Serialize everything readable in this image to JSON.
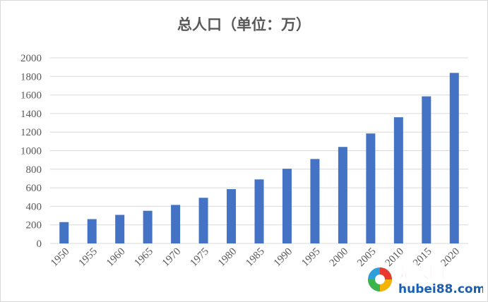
{
  "chart_data": {
    "type": "bar",
    "title": "总人口（单位：万）",
    "categories": [
      "1950",
      "1955",
      "1960",
      "1965",
      "1970",
      "1975",
      "1980",
      "1985",
      "1990",
      "1995",
      "2000",
      "2005",
      "2010",
      "2015",
      "2020"
    ],
    "series": [
      {
        "values": [
          230,
          262,
          308,
          352,
          415,
          492,
          585,
          690,
          805,
          910,
          1040,
          1185,
          1360,
          1585,
          1838
        ]
      }
    ],
    "ylim": [
      0,
      2000
    ],
    "yticks": [
      0,
      200,
      400,
      600,
      800,
      1000,
      1200,
      1400,
      1600,
      1800,
      2000
    ],
    "grid": true,
    "bar_color": "#4472C4"
  },
  "watermark": {
    "brand": "楚汉网",
    "domain": "hubei88.com",
    "logo_icon": "colorful-ball-logo"
  }
}
